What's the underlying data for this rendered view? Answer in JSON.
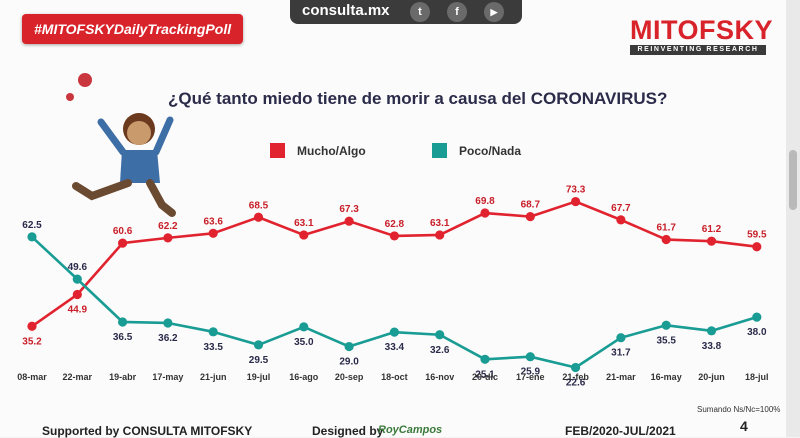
{
  "header": {
    "tag": "#MITOFSKYDailyTrackingPoll",
    "site": "consulta.mx",
    "social_icons": [
      {
        "name": "twitter-icon",
        "glyph": "t"
      },
      {
        "name": "facebook-icon",
        "glyph": "f"
      },
      {
        "name": "youtube-icon",
        "glyph": "▶"
      }
    ],
    "logo_main": "MITOFSKY",
    "logo_sub": "REINVENTING RESEARCH"
  },
  "colors": {
    "series_a": "#e0232e",
    "series_b": "#199c94",
    "brand_red": "#d8232a"
  },
  "chart_data": {
    "type": "line",
    "title": "¿Qué tanto miedo tiene de morir a causa del CORONAVIRUS?",
    "categories": [
      "08-mar",
      "22-mar",
      "19-abr",
      "17-may",
      "21-jun",
      "19-jul",
      "16-ago",
      "20-sep",
      "18-oct",
      "16-nov",
      "20-dic",
      "17-ene",
      "21-feb",
      "21-mar",
      "16-may",
      "20-jun",
      "18-jul"
    ],
    "series": [
      {
        "name": "Mucho/Algo",
        "color": "#e0232e",
        "values": [
          35.2,
          44.9,
          60.6,
          62.2,
          63.6,
          68.5,
          63.1,
          67.3,
          62.8,
          63.1,
          69.8,
          68.7,
          73.3,
          67.7,
          61.7,
          61.2,
          59.5
        ]
      },
      {
        "name": "Poco/Nada",
        "color": "#199c94",
        "values": [
          62.5,
          49.6,
          36.5,
          36.2,
          33.5,
          29.5,
          35.0,
          29.0,
          33.4,
          32.6,
          25.1,
          25.9,
          22.6,
          31.7,
          35.5,
          33.8,
          38.0
        ]
      }
    ],
    "ylim": [
      20,
      75
    ],
    "grid": false,
    "legend": "top"
  },
  "footer": {
    "supported": "Supported by   CONSULTA  MITOFSKY",
    "designed": "Designed by",
    "designer": "RoyCampos",
    "period": "FEB/2020-JUL/2021",
    "note": "Sumando Ns/Nc=100%",
    "page": "4"
  }
}
